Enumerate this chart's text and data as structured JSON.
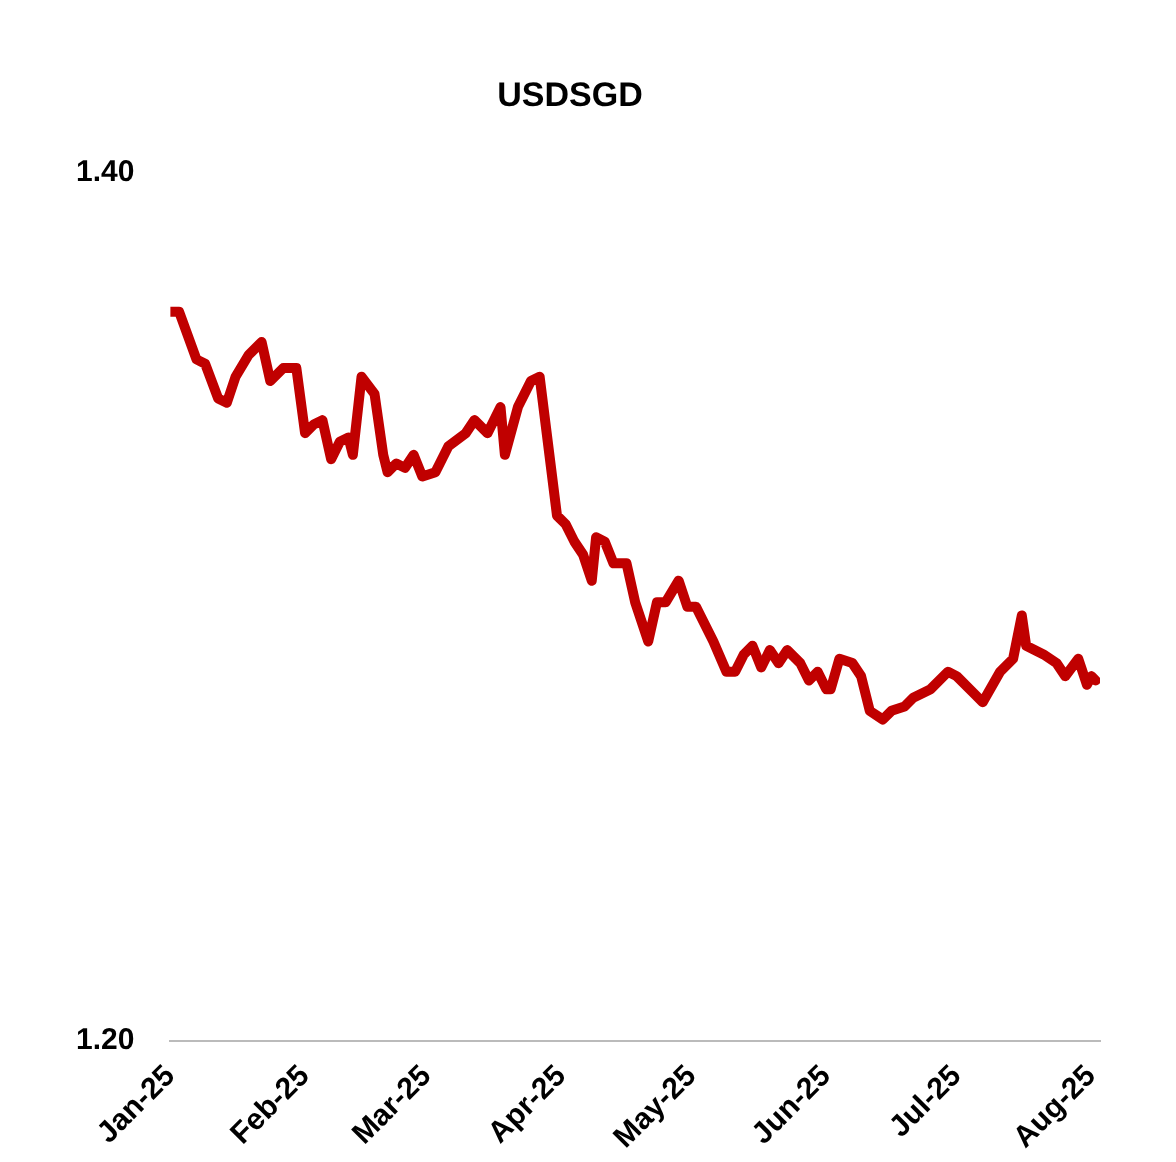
{
  "chart_data": {
    "type": "line",
    "title": "USDSGD",
    "x": [
      "2025-01-01",
      "2025-01-03",
      "2025-01-07",
      "2025-01-09",
      "2025-01-12",
      "2025-01-14",
      "2025-01-16",
      "2025-01-19",
      "2025-01-22",
      "2025-01-24",
      "2025-01-27",
      "2025-01-30",
      "2025-02-01",
      "2025-02-03",
      "2025-02-05",
      "2025-02-07",
      "2025-02-09",
      "2025-02-11",
      "2025-02-12",
      "2025-02-14",
      "2025-02-17",
      "2025-02-19",
      "2025-02-20",
      "2025-02-22",
      "2025-02-24",
      "2025-02-26",
      "2025-02-28",
      "2025-03-03",
      "2025-03-06",
      "2025-03-10",
      "2025-03-12",
      "2025-03-15",
      "2025-03-18",
      "2025-03-19",
      "2025-03-22",
      "2025-03-25",
      "2025-03-27",
      "2025-03-31",
      "2025-04-02",
      "2025-04-04",
      "2025-04-06",
      "2025-04-08",
      "2025-04-09",
      "2025-04-11",
      "2025-04-13",
      "2025-04-16",
      "2025-04-18",
      "2025-04-21",
      "2025-04-23",
      "2025-04-25",
      "2025-04-28",
      "2025-04-30",
      "2025-05-02",
      "2025-05-03",
      "2025-05-06",
      "2025-05-09",
      "2025-05-11",
      "2025-05-13",
      "2025-05-15",
      "2025-05-17",
      "2025-05-19",
      "2025-05-21",
      "2025-05-23",
      "2025-05-26",
      "2025-05-28",
      "2025-05-30",
      "2025-06-01",
      "2025-06-02",
      "2025-06-04",
      "2025-06-07",
      "2025-06-09",
      "2025-06-11",
      "2025-06-14",
      "2025-06-16",
      "2025-06-19",
      "2025-06-21",
      "2025-06-23",
      "2025-06-25",
      "2025-06-29",
      "2025-07-01",
      "2025-07-05",
      "2025-07-07",
      "2025-07-11",
      "2025-07-14",
      "2025-07-16",
      "2025-07-17",
      "2025-07-21",
      "2025-07-24",
      "2025-07-26",
      "2025-07-29",
      "2025-07-31",
      "2025-08-01",
      "2025-08-02"
    ],
    "series": [
      {
        "color": "#c00000",
        "values": [
          1.368,
          1.368,
          1.357,
          1.356,
          1.348,
          1.347,
          1.353,
          1.358,
          1.361,
          1.352,
          1.355,
          1.355,
          1.34,
          1.342,
          1.343,
          1.334,
          1.338,
          1.339,
          1.335,
          1.353,
          1.349,
          1.335,
          1.331,
          1.333,
          1.332,
          1.335,
          1.33,
          1.331,
          1.337,
          1.34,
          1.343,
          1.34,
          1.346,
          1.335,
          1.346,
          1.352,
          1.353,
          1.321,
          1.319,
          1.315,
          1.312,
          1.306,
          1.316,
          1.315,
          1.31,
          1.31,
          1.301,
          1.292,
          1.301,
          1.301,
          1.306,
          1.3,
          1.3,
          1.298,
          1.292,
          1.285,
          1.285,
          1.289,
          1.291,
          1.286,
          1.29,
          1.287,
          1.29,
          1.287,
          1.283,
          1.285,
          1.281,
          1.281,
          1.288,
          1.287,
          1.284,
          1.276,
          1.274,
          1.276,
          1.277,
          1.279,
          1.28,
          1.281,
          1.285,
          1.284,
          1.28,
          1.278,
          1.285,
          1.288,
          1.298,
          1.291,
          1.289,
          1.287,
          1.284,
          1.288,
          1.282,
          1.284,
          1.283
        ]
      }
    ],
    "xlim": [
      "2025-01-01",
      "2025-08-03"
    ],
    "xticks": [
      {
        "value": "2025-01-01",
        "label": "Jan-25"
      },
      {
        "value": "2025-02-01",
        "label": "Feb-25"
      },
      {
        "value": "2025-03-01",
        "label": "Mar-25"
      },
      {
        "value": "2025-04-01",
        "label": "Apr-25"
      },
      {
        "value": "2025-05-01",
        "label": "May-25"
      },
      {
        "value": "2025-06-01",
        "label": "Jun-25"
      },
      {
        "value": "2025-07-01",
        "label": "Jul-25"
      },
      {
        "value": "2025-08-01",
        "label": "Aug-25"
      }
    ],
    "ylim": [
      1.2,
      1.4
    ],
    "yticks": [
      {
        "value": 1.2,
        "label": "1.20"
      },
      {
        "value": 1.4,
        "label": "1.40"
      }
    ],
    "grid": false,
    "legend": false,
    "marker": "none",
    "line_style": "solid"
  }
}
